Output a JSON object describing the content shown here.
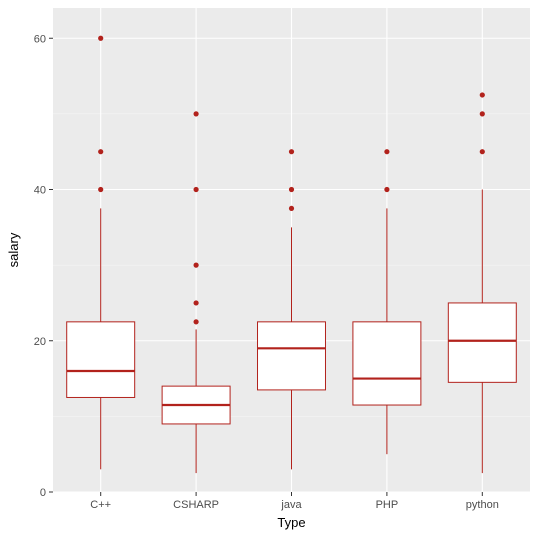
{
  "chart_data": {
    "type": "boxplot",
    "xlabel": "Type",
    "ylabel": "salary",
    "ylim": [
      0,
      64
    ],
    "yticks": [
      0,
      20,
      40,
      60
    ],
    "grid": true,
    "legend": "none",
    "colors": {
      "panel_bg": "#ebebeb",
      "grid_major": "#ffffff",
      "box_stroke": "#b2221c",
      "box_fill": "#ffffff",
      "outlier": "#b2221c"
    },
    "categories": [
      "C++",
      "CSHARP",
      "java",
      "PHP",
      "python"
    ],
    "boxes": [
      {
        "category": "C++",
        "min": 3,
        "q1": 12.5,
        "median": 16,
        "q3": 22.5,
        "max": 37.5,
        "outliers": [
          40,
          45,
          60
        ]
      },
      {
        "category": "CSHARP",
        "min": 2.5,
        "q1": 9,
        "median": 11.5,
        "q3": 14,
        "max": 21.5,
        "outliers": [
          22.5,
          25,
          30,
          40,
          50
        ]
      },
      {
        "category": "java",
        "min": 3,
        "q1": 13.5,
        "median": 19,
        "q3": 22.5,
        "max": 35,
        "outliers": [
          37.5,
          40,
          45
        ]
      },
      {
        "category": "PHP",
        "min": 5,
        "q1": 11.5,
        "median": 15,
        "q3": 22.5,
        "max": 37.5,
        "outliers": [
          40,
          45
        ]
      },
      {
        "category": "python",
        "min": 2.5,
        "q1": 14.5,
        "median": 20,
        "q3": 25,
        "max": 40,
        "outliers": [
          45,
          50,
          52.5
        ]
      }
    ]
  }
}
